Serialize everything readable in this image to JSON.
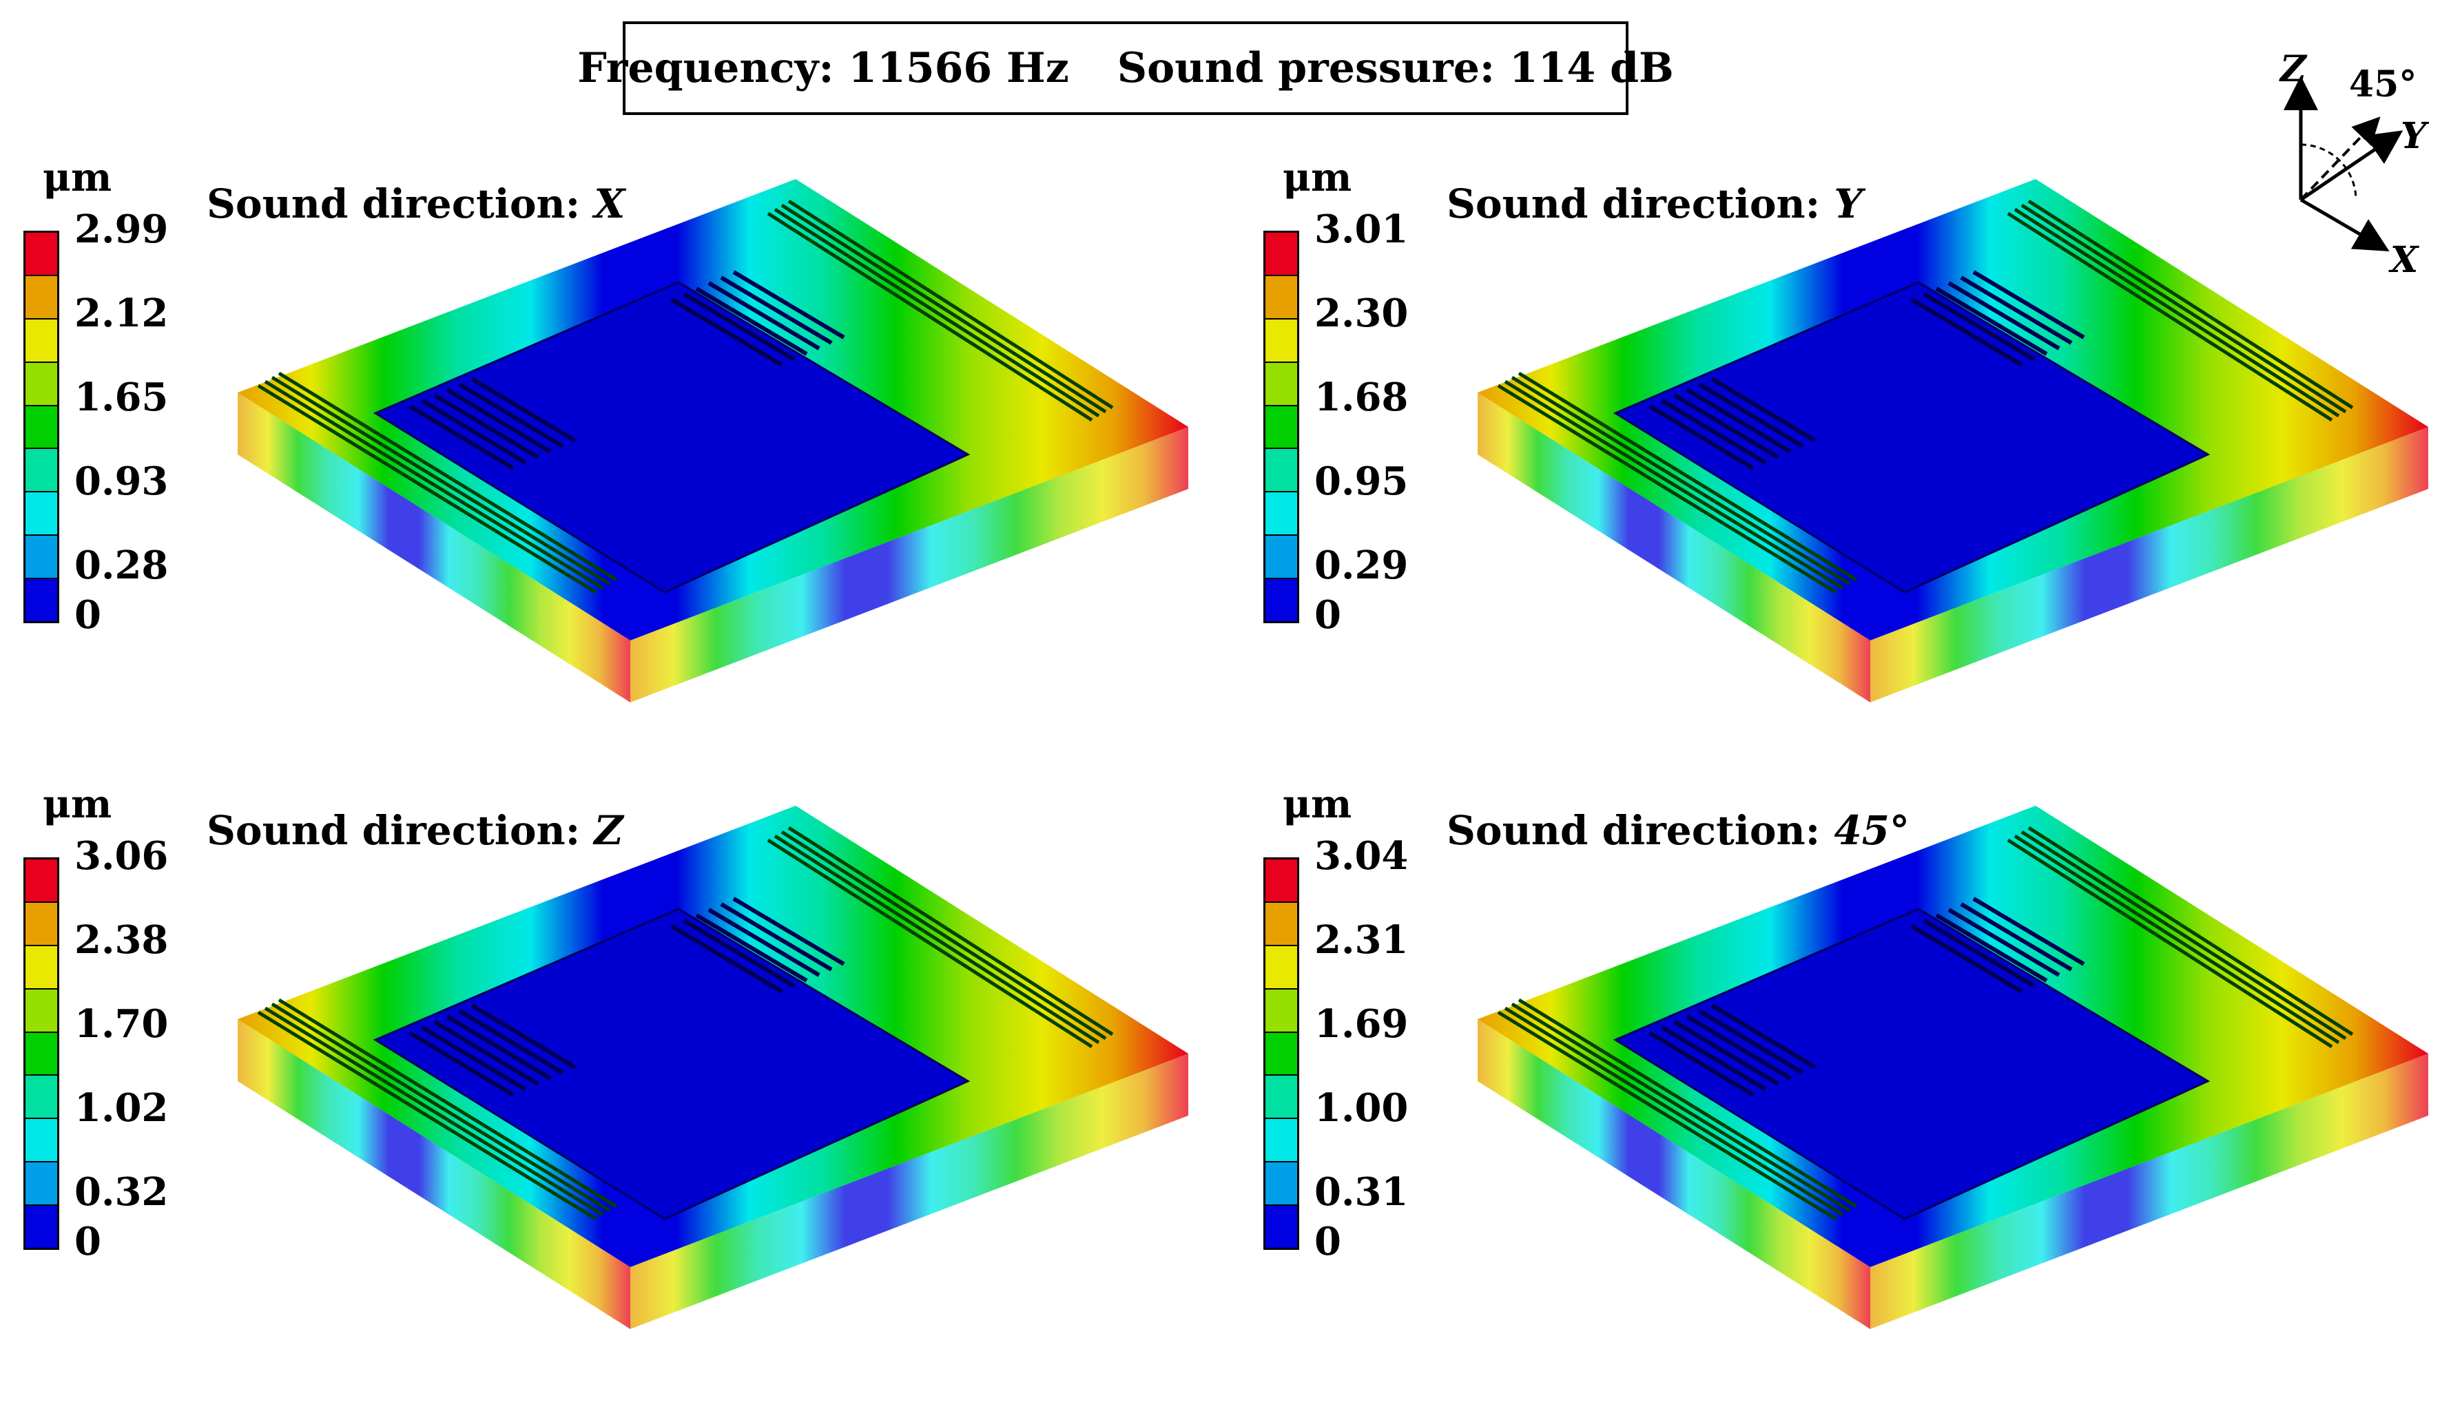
{
  "header": {
    "frequency": "Frequency: 11566 Hz",
    "pressure": "Sound pressure: 114 dB"
  },
  "axes": {
    "z": "Z",
    "y": "Y",
    "x": "X",
    "angle": "45°"
  },
  "colors": {
    "red": "#e8001c",
    "orange": "#e8a000",
    "yellow": "#e8e800",
    "yellowgreen": "#96e000",
    "green": "#00d000",
    "teal": "#00e0a0",
    "cyan": "#00e8e8",
    "skyblue": "#00a0e8",
    "blue": "#0000e0"
  },
  "panels": [
    {
      "title_prefix": "Sound direction: ",
      "title_dir": "X",
      "unit": "μm",
      "ticks": [
        "2.99",
        "2.12",
        "1.65",
        "0.93",
        "0.28",
        "0"
      ]
    },
    {
      "title_prefix": "Sound direction: ",
      "title_dir": "Y",
      "unit": "μm",
      "ticks": [
        "3.01",
        "2.30",
        "1.68",
        "0.95",
        "0.29",
        "0"
      ]
    },
    {
      "title_prefix": "Sound direction: ",
      "title_dir": "Z",
      "unit": "μm",
      "ticks": [
        "3.06",
        "2.38",
        "1.70",
        "1.02",
        "0.32",
        "0"
      ]
    },
    {
      "title_prefix": "Sound direction: ",
      "title_dir": "45°",
      "unit": "μm",
      "ticks": [
        "3.04",
        "2.31",
        "1.69",
        "1.00",
        "0.31",
        "0"
      ]
    }
  ]
}
